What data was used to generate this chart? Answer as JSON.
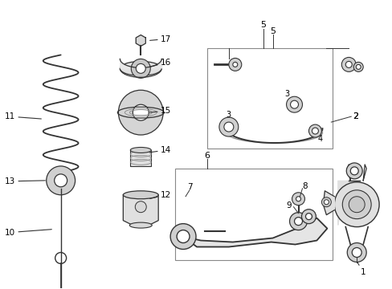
{
  "bg_color": "#ffffff",
  "fig_width": 4.89,
  "fig_height": 3.6,
  "dpi": 100,
  "line_color": "#333333",
  "text_color": "#000000",
  "font_size": 7.5
}
